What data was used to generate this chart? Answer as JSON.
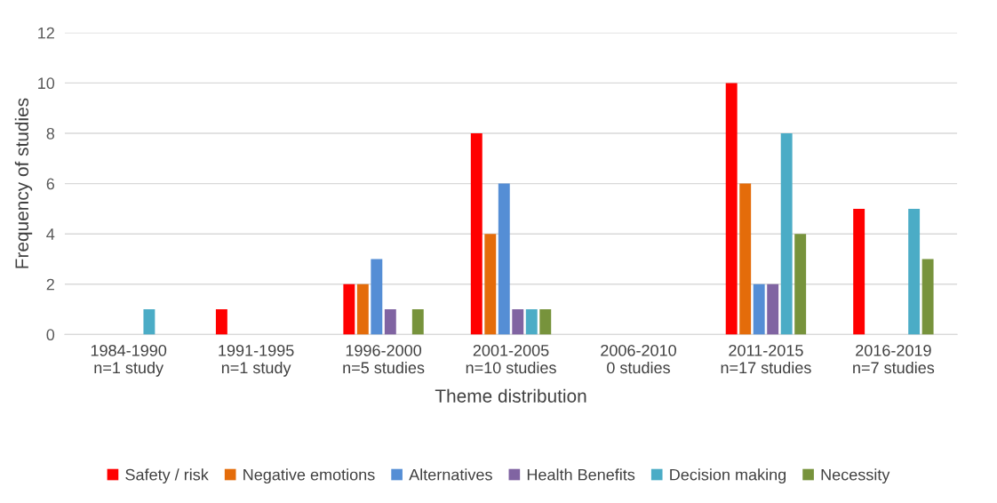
{
  "chart_data": {
    "type": "bar",
    "xlabel": "Theme distribution",
    "ylabel": "Frequency of studies",
    "categories": [
      "1984-1990\nn=1 study",
      "1991-1995\nn=1 study",
      "1996-2000\nn=5 studies",
      "2001-2005\nn=10 studies",
      "2006-2010\n0 studies",
      "2011-2015\nn=17 studies",
      "2016-2019\nn=7 studies"
    ],
    "series": [
      {
        "name": "Safety / risk",
        "color": "#ff0000",
        "values": [
          0,
          1,
          2,
          8,
          0,
          10,
          5
        ]
      },
      {
        "name": "Negative emotions",
        "color": "#e46c0a",
        "values": [
          0,
          0,
          2,
          4,
          0,
          6,
          0
        ]
      },
      {
        "name": "Alternatives",
        "color": "#558ed5",
        "values": [
          0,
          0,
          3,
          6,
          0,
          2,
          0
        ]
      },
      {
        "name": "Health Benefits",
        "color": "#8064a2",
        "values": [
          0,
          0,
          1,
          1,
          0,
          2,
          0
        ]
      },
      {
        "name": "Decision making",
        "color": "#4bacc6",
        "values": [
          1,
          0,
          0,
          1,
          0,
          8,
          5
        ]
      },
      {
        "name": "Necessity",
        "color": "#77933c",
        "values": [
          0,
          0,
          1,
          1,
          0,
          4,
          3
        ]
      }
    ],
    "ylim": [
      0,
      12
    ],
    "yticks": [
      0,
      2,
      4,
      6,
      8,
      10,
      12
    ],
    "grid": "y",
    "legend": "bottom"
  }
}
